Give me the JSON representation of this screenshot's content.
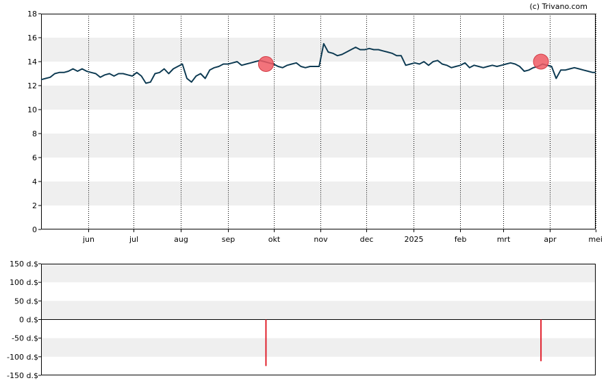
{
  "credit": "(c) Trivano.com",
  "chart_data": [
    {
      "type": "line",
      "title": "",
      "xlabel": "",
      "ylabel": "",
      "ylim": [
        0,
        18
      ],
      "yticks": [
        "0",
        "2",
        "4",
        "6",
        "8",
        "10",
        "12",
        "14",
        "16",
        "18"
      ],
      "ytick_values": [
        0,
        2,
        4,
        6,
        8,
        10,
        12,
        14,
        16,
        18
      ],
      "xticks": [
        "jun",
        "jul",
        "aug",
        "sep",
        "okt",
        "nov",
        "dec",
        "2025",
        "feb",
        "mrt",
        "apr",
        "mei"
      ],
      "xtick_dates": [
        "2024-06-01",
        "2024-07-01",
        "2024-08-01",
        "2024-09-01",
        "2024-10-01",
        "2024-11-01",
        "2024-12-01",
        "2025-01-01",
        "2025-02-01",
        "2025-03-01",
        "2025-04-01",
        "2025-05-01"
      ],
      "xlim": [
        "2024-05-01",
        "2025-05-01"
      ],
      "grid": "horizontal bands, vertical dotted month lines",
      "colors": {
        "line": "#0d3a52",
        "marker": "#f05a64",
        "band": "#efefef"
      },
      "series": [
        {
          "x": [
            "2024-05-01",
            "2024-05-04",
            "2024-05-07",
            "2024-05-10",
            "2024-05-13",
            "2024-05-16",
            "2024-05-19",
            "2024-05-22",
            "2024-05-25",
            "2024-05-28",
            "2024-05-31",
            "2024-06-03",
            "2024-06-06",
            "2024-06-09",
            "2024-06-12",
            "2024-06-15",
            "2024-06-18",
            "2024-06-21",
            "2024-06-24",
            "2024-06-27",
            "2024-06-30",
            "2024-07-03",
            "2024-07-06",
            "2024-07-09",
            "2024-07-12",
            "2024-07-15",
            "2024-07-18",
            "2024-07-21",
            "2024-07-24",
            "2024-07-27",
            "2024-07-30",
            "2024-08-02",
            "2024-08-05",
            "2024-08-08",
            "2024-08-11",
            "2024-08-14",
            "2024-08-17",
            "2024-08-20",
            "2024-08-23",
            "2024-08-26",
            "2024-08-29",
            "2024-09-01",
            "2024-09-04",
            "2024-09-07",
            "2024-09-10",
            "2024-09-13",
            "2024-09-16",
            "2024-09-19",
            "2024-09-22",
            "2024-09-25",
            "2024-09-28",
            "2024-10-01",
            "2024-10-04",
            "2024-10-07",
            "2024-10-10",
            "2024-10-13",
            "2024-10-16",
            "2024-10-19",
            "2024-10-22",
            "2024-10-25",
            "2024-10-28",
            "2024-10-31",
            "2024-11-03",
            "2024-11-06",
            "2024-11-09",
            "2024-11-12",
            "2024-11-15",
            "2024-11-18",
            "2024-11-21",
            "2024-11-24",
            "2024-11-27",
            "2024-11-30",
            "2024-12-03",
            "2024-12-06",
            "2024-12-09",
            "2024-12-12",
            "2024-12-15",
            "2024-12-18",
            "2024-12-21",
            "2024-12-24",
            "2024-12-27",
            "2024-12-30",
            "2025-01-02",
            "2025-01-05",
            "2025-01-08",
            "2025-01-11",
            "2025-01-14",
            "2025-01-17",
            "2025-01-20",
            "2025-01-23",
            "2025-01-26",
            "2025-01-29",
            "2025-02-01",
            "2025-02-04",
            "2025-02-07",
            "2025-02-10",
            "2025-02-13",
            "2025-02-16",
            "2025-02-19",
            "2025-02-22",
            "2025-02-25",
            "2025-02-28",
            "2025-03-03",
            "2025-03-06",
            "2025-03-09",
            "2025-03-12",
            "2025-03-15",
            "2025-03-18",
            "2025-03-21",
            "2025-03-24",
            "2025-03-27",
            "2025-03-30",
            "2025-04-02",
            "2025-04-05",
            "2025-04-08",
            "2025-04-11",
            "2025-04-14",
            "2025-04-17",
            "2025-04-20",
            "2025-04-23",
            "2025-04-26",
            "2025-04-29",
            "2025-05-01"
          ],
          "values": [
            12.5,
            12.6,
            12.7,
            13.0,
            13.1,
            13.1,
            13.2,
            13.4,
            13.2,
            13.4,
            13.2,
            13.1,
            13.0,
            12.7,
            12.9,
            13.0,
            12.8,
            13.0,
            13.0,
            12.9,
            12.8,
            13.1,
            12.8,
            12.2,
            12.3,
            13.0,
            13.1,
            13.4,
            13.0,
            13.4,
            13.6,
            13.8,
            12.6,
            12.3,
            12.8,
            13.0,
            12.6,
            13.3,
            13.5,
            13.6,
            13.8,
            13.8,
            13.9,
            14.0,
            13.7,
            13.8,
            13.9,
            14.0,
            14.1,
            14.0,
            13.9,
            13.8,
            13.6,
            13.5,
            13.7,
            13.8,
            13.9,
            13.6,
            13.5,
            13.6,
            13.6,
            13.6,
            15.5,
            14.8,
            14.7,
            14.5,
            14.6,
            14.8,
            15.0,
            15.2,
            15.0,
            15.0,
            15.1,
            15.0,
            15.0,
            14.9,
            14.8,
            14.7,
            14.5,
            14.5,
            13.7,
            13.8,
            13.9,
            13.8,
            14.0,
            13.7,
            14.0,
            14.1,
            13.8,
            13.7,
            13.5,
            13.6,
            13.7,
            13.9,
            13.5,
            13.7,
            13.6,
            13.5,
            13.6,
            13.7,
            13.6,
            13.7,
            13.8,
            13.9,
            13.8,
            13.6,
            13.2,
            13.3,
            13.5,
            13.6,
            13.8,
            13.7,
            13.6,
            12.6,
            13.3,
            13.3,
            13.4,
            13.5,
            13.4,
            13.3,
            13.2,
            13.1,
            13.1
          ]
        }
      ],
      "markers": [
        {
          "x": "2024-09-26",
          "y": 13.8
        },
        {
          "x": "2025-03-26",
          "y": 14.0
        }
      ]
    },
    {
      "type": "bar",
      "title": "",
      "xlabel": "",
      "ylabel": "",
      "ylim": [
        -150,
        150
      ],
      "yticks": [
        "150 d.$",
        "100 d.$",
        "50 d.$",
        "0 d.$",
        "-50 d.$",
        "-100 d.$",
        "-150 d.$"
      ],
      "ytick_values": [
        150,
        100,
        50,
        0,
        -50,
        -100,
        -150
      ],
      "xlim": [
        "2024-05-01",
        "2025-05-01"
      ],
      "colors": {
        "bar": "#e0202c",
        "band": "#efefef"
      },
      "bars": [
        {
          "x": "2024-09-26",
          "value": -125
        },
        {
          "x": "2025-03-26",
          "value": -112
        }
      ]
    }
  ]
}
